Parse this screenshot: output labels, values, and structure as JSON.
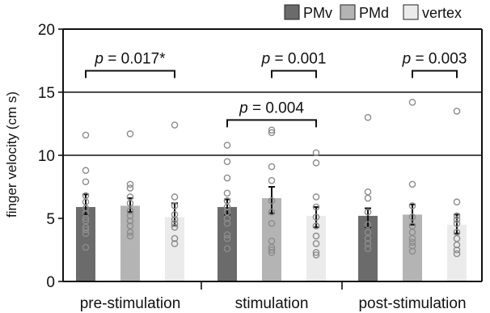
{
  "chart_data": {
    "type": "bar",
    "ylabel": "finger velocity (cm s)",
    "ylim": [
      0,
      20
    ],
    "yticks": [
      0,
      5,
      10,
      15,
      20
    ],
    "categories": [
      "pre-stimulation",
      "stimulation",
      "post-stimulation"
    ],
    "gridlines": [
      10,
      15
    ],
    "series": [
      {
        "name": "PMv",
        "color": "#6b6b6b",
        "values": [
          5.9,
          5.9,
          5.2
        ],
        "error": [
          [
            5.3,
            6.9
          ],
          [
            5.3,
            6.5
          ],
          [
            4.3,
            5.8
          ]
        ],
        "points": [
          [
            11.6,
            8.8,
            7.9,
            6.8,
            6.3,
            5.8,
            5.4,
            5.0,
            4.8,
            4.3,
            4.1,
            3.8,
            2.7
          ],
          [
            10.8,
            9.5,
            8.2,
            7.0,
            6.4,
            5.9,
            5.5,
            5.0,
            4.6,
            3.7,
            3.4,
            2.6
          ],
          [
            13.0,
            7.1,
            6.6,
            5.5,
            4.5,
            3.9,
            3.4,
            3.0,
            2.6
          ]
        ]
      },
      {
        "name": "PMd",
        "color": "#b4b4b4",
        "values": [
          6.0,
          6.6,
          5.3
        ],
        "error": [
          [
            5.5,
            6.6
          ],
          [
            5.4,
            7.5
          ],
          [
            4.5,
            6.1
          ]
        ],
        "points": [
          [
            11.7,
            7.7,
            7.4,
            6.7,
            6.2,
            5.6,
            5.2,
            4.8,
            4.4,
            3.9,
            3.6
          ],
          [
            12.0,
            11.8,
            9.1,
            8.0,
            6.4,
            5.5,
            4.6,
            3.2,
            2.7,
            2.5,
            2.3
          ],
          [
            14.2,
            7.7,
            6.0,
            5.1,
            4.4,
            3.9,
            3.4,
            3.1,
            2.8,
            2.4
          ]
        ]
      },
      {
        "name": "vertex",
        "color": "#ebebeb",
        "values": [
          5.1,
          5.2,
          4.5
        ],
        "error": [
          [
            4.4,
            6.2
          ],
          [
            4.3,
            5.9
          ],
          [
            3.8,
            5.3
          ]
        ],
        "points": [
          [
            12.4,
            6.7,
            6.0,
            5.3,
            4.9,
            4.6,
            4.3,
            3.4,
            3.0
          ],
          [
            10.2,
            9.4,
            6.7,
            5.9,
            5.1,
            4.4,
            3.6,
            3.0,
            2.3,
            2.1
          ],
          [
            13.5,
            6.3,
            5.2,
            4.9,
            4.6,
            3.9,
            3.4,
            2.9,
            2.5,
            2.2
          ]
        ]
      }
    ],
    "legend": {
      "placement": "top-right",
      "entries": [
        "PMv",
        "PMd",
        "vertex"
      ]
    },
    "annotations": [
      {
        "label": "p = 0.017*",
        "group": 0,
        "from": 0,
        "to": 2,
        "y": 16.7
      },
      {
        "label": "p = 0.001",
        "group": 1,
        "from": 1,
        "to": 2,
        "y": 16.7
      },
      {
        "label": "p = 0.003",
        "group": 2,
        "from": 1,
        "to": 2,
        "y": 16.7
      },
      {
        "label": "p = 0.004",
        "group": 1,
        "from": 0,
        "to": 2,
        "y": 12.8
      }
    ]
  }
}
